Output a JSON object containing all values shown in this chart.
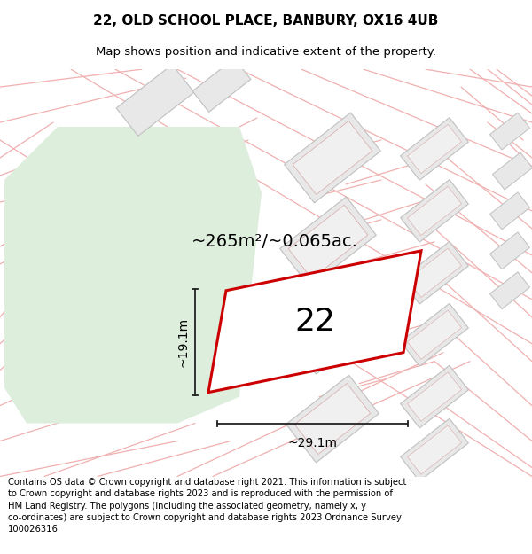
{
  "title_line1": "22, OLD SCHOOL PLACE, BANBURY, OX16 4UB",
  "title_line2": "Map shows position and indicative extent of the property.",
  "footer_text": "Contains OS data © Crown copyright and database right 2021. This information is subject to Crown copyright and database rights 2023 and is reproduced with the permission of HM Land Registry. The polygons (including the associated geometry, namely x, y co-ordinates) are subject to Crown copyright and database rights 2023 Ordnance Survey 100026316.",
  "area_label": "~265m²/~0.065ac.",
  "number_label": "22",
  "dim_height": "~19.1m",
  "dim_width": "~29.1m",
  "bg_color": "#ffffff",
  "map_bg": "#ffffff",
  "green_patch_color": "#ddeedd",
  "green_patch_border": "#c8ddc6",
  "road_color": "#f0b0b0",
  "building_fill": "#e8e8e8",
  "building_border": "#c0c0c0",
  "building_inner_border": "#d8a8a8",
  "property_fill": "#ffffff",
  "property_border": "#cc0000",
  "dim_color": "#222222",
  "title_fontsize": 11,
  "subtitle_fontsize": 9.5,
  "area_fontsize": 14,
  "number_fontsize": 26,
  "dim_fontsize": 10,
  "footer_fontsize": 7.2
}
